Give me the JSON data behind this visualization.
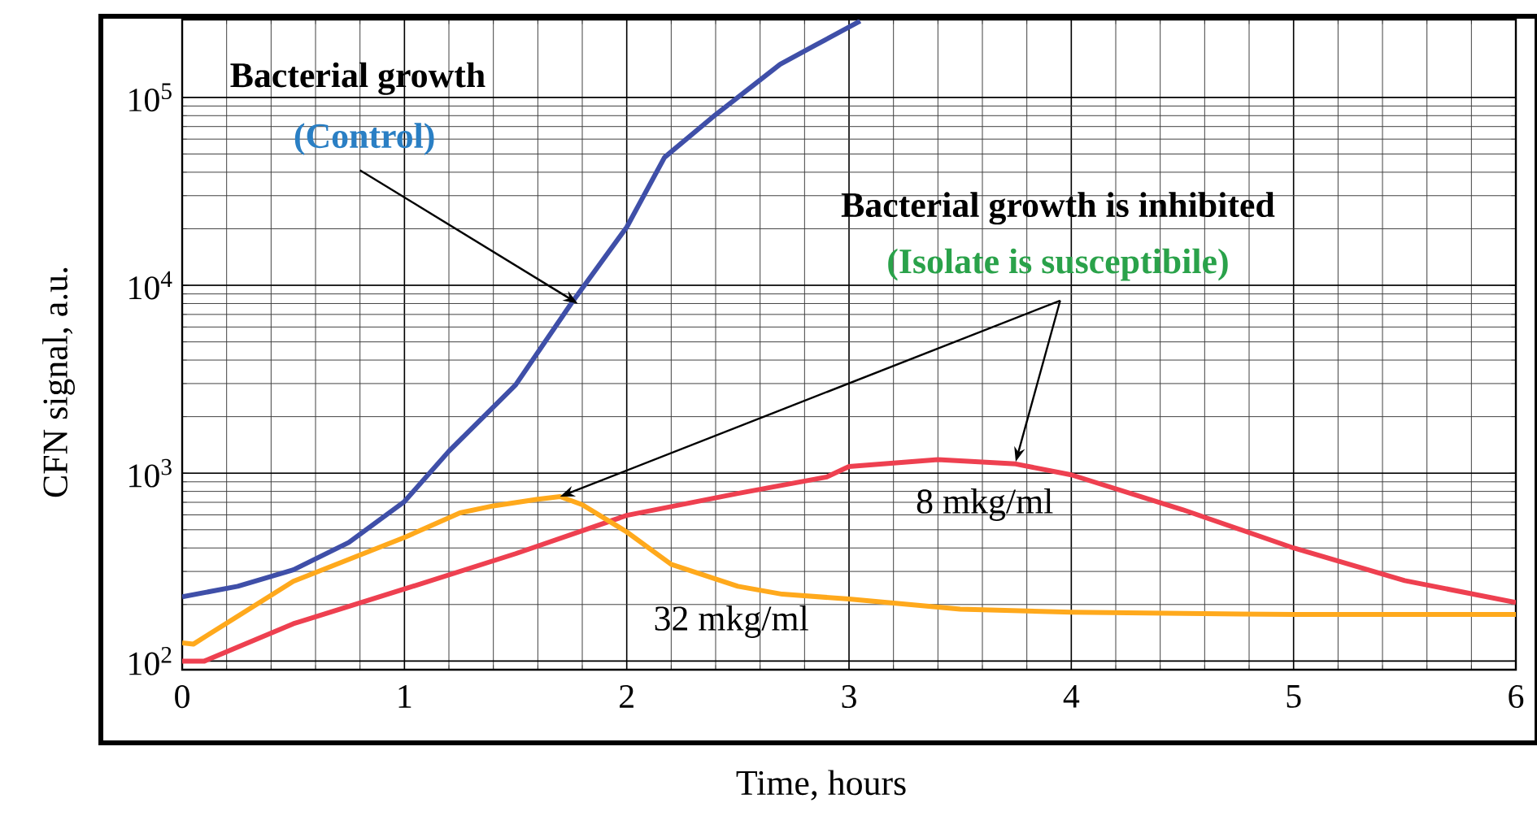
{
  "chart_data": {
    "type": "line",
    "xlabel": "Time, hours",
    "ylabel": "CFN signal, a.u.",
    "log": "y",
    "grid": true,
    "marker": "none",
    "line_style": "solid",
    "xlim": [
      0,
      6
    ],
    "xticks": [
      0,
      1,
      2,
      3,
      4,
      5,
      6
    ],
    "ylim": [
      90,
      260000
    ],
    "yticks": [
      {
        "value": 100,
        "label": "10$^{2}$"
      },
      {
        "value": 1000,
        "label": "10$^{3}$"
      },
      {
        "value": 10000,
        "label": "10$^{4}$"
      },
      {
        "value": 100000,
        "label": "10$^{5}$"
      }
    ],
    "series": [
      {
        "color": "#3f4fa8",
        "x": [
          0,
          0.25,
          0.5,
          0.75,
          1,
          1.2,
          1.5,
          1.75,
          2,
          2.17,
          2.4,
          2.69,
          2.85,
          3.05
        ],
        "values": [
          220,
          250,
          306,
          428,
          707,
          1310,
          2950,
          8000,
          20400,
          48000,
          81000,
          150000,
          190000,
          255000
        ]
      },
      {
        "name": "8 mkg/ml",
        "color": "#ee4050",
        "x": [
          0,
          0.1,
          0.5,
          1,
          1.5,
          2,
          2.5,
          2.9,
          3,
          3.4,
          3.75,
          4,
          4.5,
          5,
          5.5,
          6
        ],
        "values": [
          100,
          100,
          158,
          242,
          373,
          596,
          780,
          955,
          1085,
          1180,
          1120,
          980,
          640,
          400,
          268,
          205
        ]
      },
      {
        "name": "32 mkg/ml",
        "color": "#ffa91c",
        "x": [
          0,
          0.05,
          0.5,
          1,
          1.25,
          1.4,
          1.6,
          1.7,
          1.8,
          2,
          2.2,
          2.5,
          2.7,
          3,
          3.5,
          4,
          5,
          6
        ],
        "values": [
          125,
          123,
          266,
          455,
          615,
          670,
          727,
          751,
          680,
          487,
          327,
          250,
          227,
          214,
          189,
          182,
          177,
          177
        ]
      }
    ],
    "annotations": [
      "Bacterial growth",
      {
        "text": "(Control)",
        "x": 1.78,
        "y": 8000
      },
      "Bacterial growth is inhibited",
      {
        "text": "(Isolate is susceptibile)",
        "x": 3.75,
        "y": 1150
      }
    ]
  }
}
